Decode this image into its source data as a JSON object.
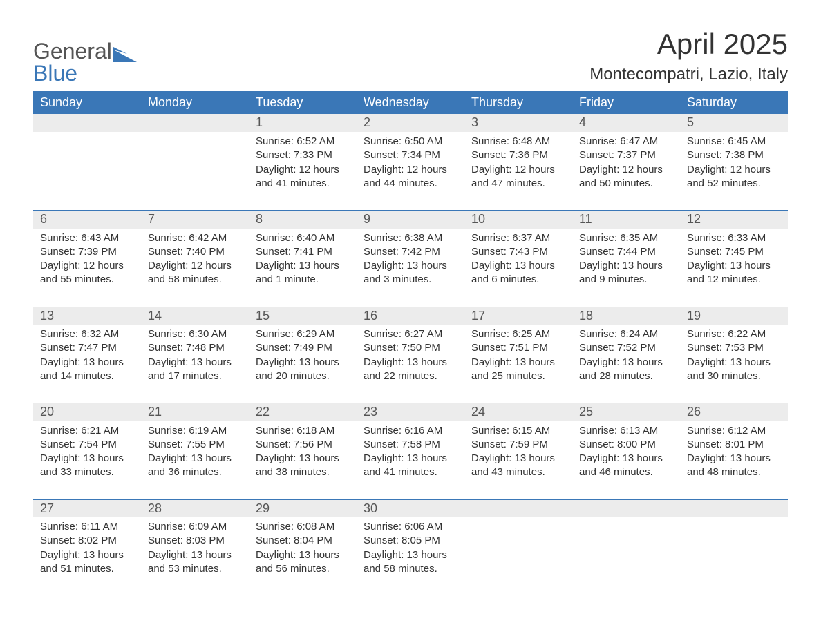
{
  "logo": {
    "word1": "General",
    "word2": "Blue",
    "icon_color": "#3a77b7"
  },
  "title": "April 2025",
  "subtitle": "Montecompatri, Lazio, Italy",
  "colors": {
    "header_bg": "#3a77b7",
    "header_text": "#ffffff",
    "daynum_bg": "#ececec",
    "daynum_text": "#555555",
    "body_text": "#333333",
    "page_bg": "#ffffff",
    "week_border": "#3a77b7"
  },
  "typography": {
    "title_fontsize": 42,
    "subtitle_fontsize": 24,
    "header_fontsize": 18,
    "daynum_fontsize": 18,
    "cell_fontsize": 15,
    "font_family": "Arial"
  },
  "layout": {
    "columns": 7,
    "rows": 5,
    "type": "calendar"
  },
  "weekdays": [
    "Sunday",
    "Monday",
    "Tuesday",
    "Wednesday",
    "Thursday",
    "Friday",
    "Saturday"
  ],
  "weeks": [
    [
      null,
      null,
      {
        "day": "1",
        "sunrise": "Sunrise: 6:52 AM",
        "sunset": "Sunset: 7:33 PM",
        "daylight": "Daylight: 12 hours and 41 minutes."
      },
      {
        "day": "2",
        "sunrise": "Sunrise: 6:50 AM",
        "sunset": "Sunset: 7:34 PM",
        "daylight": "Daylight: 12 hours and 44 minutes."
      },
      {
        "day": "3",
        "sunrise": "Sunrise: 6:48 AM",
        "sunset": "Sunset: 7:36 PM",
        "daylight": "Daylight: 12 hours and 47 minutes."
      },
      {
        "day": "4",
        "sunrise": "Sunrise: 6:47 AM",
        "sunset": "Sunset: 7:37 PM",
        "daylight": "Daylight: 12 hours and 50 minutes."
      },
      {
        "day": "5",
        "sunrise": "Sunrise: 6:45 AM",
        "sunset": "Sunset: 7:38 PM",
        "daylight": "Daylight: 12 hours and 52 minutes."
      }
    ],
    [
      {
        "day": "6",
        "sunrise": "Sunrise: 6:43 AM",
        "sunset": "Sunset: 7:39 PM",
        "daylight": "Daylight: 12 hours and 55 minutes."
      },
      {
        "day": "7",
        "sunrise": "Sunrise: 6:42 AM",
        "sunset": "Sunset: 7:40 PM",
        "daylight": "Daylight: 12 hours and 58 minutes."
      },
      {
        "day": "8",
        "sunrise": "Sunrise: 6:40 AM",
        "sunset": "Sunset: 7:41 PM",
        "daylight": "Daylight: 13 hours and 1 minute."
      },
      {
        "day": "9",
        "sunrise": "Sunrise: 6:38 AM",
        "sunset": "Sunset: 7:42 PM",
        "daylight": "Daylight: 13 hours and 3 minutes."
      },
      {
        "day": "10",
        "sunrise": "Sunrise: 6:37 AM",
        "sunset": "Sunset: 7:43 PM",
        "daylight": "Daylight: 13 hours and 6 minutes."
      },
      {
        "day": "11",
        "sunrise": "Sunrise: 6:35 AM",
        "sunset": "Sunset: 7:44 PM",
        "daylight": "Daylight: 13 hours and 9 minutes."
      },
      {
        "day": "12",
        "sunrise": "Sunrise: 6:33 AM",
        "sunset": "Sunset: 7:45 PM",
        "daylight": "Daylight: 13 hours and 12 minutes."
      }
    ],
    [
      {
        "day": "13",
        "sunrise": "Sunrise: 6:32 AM",
        "sunset": "Sunset: 7:47 PM",
        "daylight": "Daylight: 13 hours and 14 minutes."
      },
      {
        "day": "14",
        "sunrise": "Sunrise: 6:30 AM",
        "sunset": "Sunset: 7:48 PM",
        "daylight": "Daylight: 13 hours and 17 minutes."
      },
      {
        "day": "15",
        "sunrise": "Sunrise: 6:29 AM",
        "sunset": "Sunset: 7:49 PM",
        "daylight": "Daylight: 13 hours and 20 minutes."
      },
      {
        "day": "16",
        "sunrise": "Sunrise: 6:27 AM",
        "sunset": "Sunset: 7:50 PM",
        "daylight": "Daylight: 13 hours and 22 minutes."
      },
      {
        "day": "17",
        "sunrise": "Sunrise: 6:25 AM",
        "sunset": "Sunset: 7:51 PM",
        "daylight": "Daylight: 13 hours and 25 minutes."
      },
      {
        "day": "18",
        "sunrise": "Sunrise: 6:24 AM",
        "sunset": "Sunset: 7:52 PM",
        "daylight": "Daylight: 13 hours and 28 minutes."
      },
      {
        "day": "19",
        "sunrise": "Sunrise: 6:22 AM",
        "sunset": "Sunset: 7:53 PM",
        "daylight": "Daylight: 13 hours and 30 minutes."
      }
    ],
    [
      {
        "day": "20",
        "sunrise": "Sunrise: 6:21 AM",
        "sunset": "Sunset: 7:54 PM",
        "daylight": "Daylight: 13 hours and 33 minutes."
      },
      {
        "day": "21",
        "sunrise": "Sunrise: 6:19 AM",
        "sunset": "Sunset: 7:55 PM",
        "daylight": "Daylight: 13 hours and 36 minutes."
      },
      {
        "day": "22",
        "sunrise": "Sunrise: 6:18 AM",
        "sunset": "Sunset: 7:56 PM",
        "daylight": "Daylight: 13 hours and 38 minutes."
      },
      {
        "day": "23",
        "sunrise": "Sunrise: 6:16 AM",
        "sunset": "Sunset: 7:58 PM",
        "daylight": "Daylight: 13 hours and 41 minutes."
      },
      {
        "day": "24",
        "sunrise": "Sunrise: 6:15 AM",
        "sunset": "Sunset: 7:59 PM",
        "daylight": "Daylight: 13 hours and 43 minutes."
      },
      {
        "day": "25",
        "sunrise": "Sunrise: 6:13 AM",
        "sunset": "Sunset: 8:00 PM",
        "daylight": "Daylight: 13 hours and 46 minutes."
      },
      {
        "day": "26",
        "sunrise": "Sunrise: 6:12 AM",
        "sunset": "Sunset: 8:01 PM",
        "daylight": "Daylight: 13 hours and 48 minutes."
      }
    ],
    [
      {
        "day": "27",
        "sunrise": "Sunrise: 6:11 AM",
        "sunset": "Sunset: 8:02 PM",
        "daylight": "Daylight: 13 hours and 51 minutes."
      },
      {
        "day": "28",
        "sunrise": "Sunrise: 6:09 AM",
        "sunset": "Sunset: 8:03 PM",
        "daylight": "Daylight: 13 hours and 53 minutes."
      },
      {
        "day": "29",
        "sunrise": "Sunrise: 6:08 AM",
        "sunset": "Sunset: 8:04 PM",
        "daylight": "Daylight: 13 hours and 56 minutes."
      },
      {
        "day": "30",
        "sunrise": "Sunrise: 6:06 AM",
        "sunset": "Sunset: 8:05 PM",
        "daylight": "Daylight: 13 hours and 58 minutes."
      },
      null,
      null,
      null
    ]
  ]
}
